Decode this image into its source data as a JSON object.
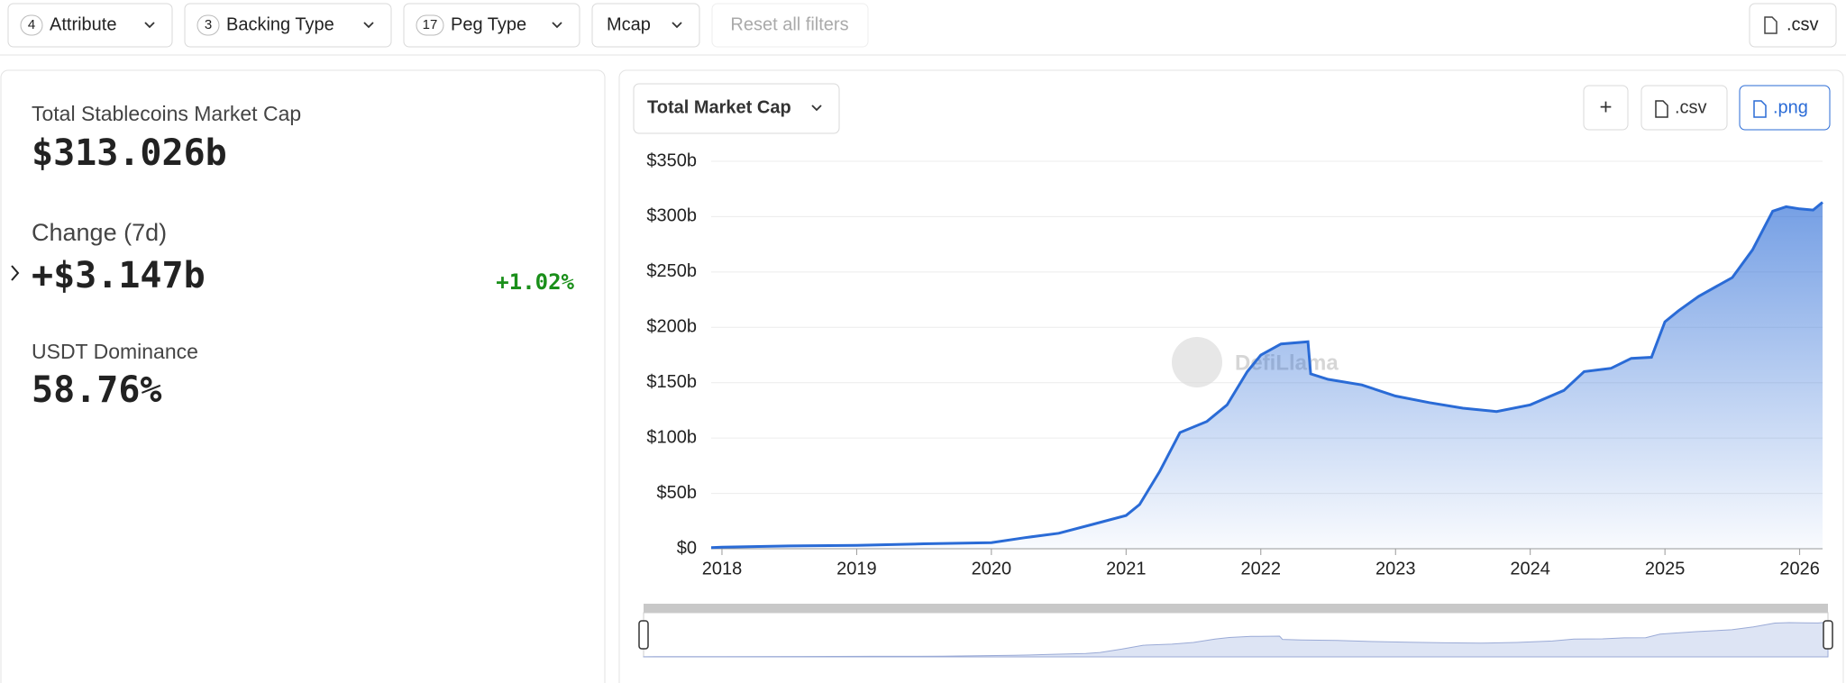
{
  "filters": [
    {
      "count": "4",
      "label": "Attribute"
    },
    {
      "count": "3",
      "label": "Backing Type"
    },
    {
      "count": "17",
      "label": "Peg Type"
    },
    {
      "label": "Mcap"
    }
  ],
  "reset": "Reset all filters",
  "csv": ".csv",
  "stats": [
    {
      "label": "Total Stablecoins Market Cap",
      "value": "$313.026b"
    },
    {
      "label": "Change (7d)",
      "value": "+$3.147b",
      "change": "+1.02%"
    },
    {
      "label": "USDT Dominance",
      "value": "58.76%"
    }
  ],
  "chart_select": "Total Market Cap",
  "chart_buttons": [
    "+",
    ".csv",
    ".png"
  ],
  "watermark": "DefiLlama",
  "chart_data": {
    "type": "area",
    "color": "#2a6bd6",
    "x": [
      2017.92,
      2018,
      2018.5,
      2019,
      2019.5,
      2020,
      2020.25,
      2020.5,
      2020.75,
      2021,
      2021.1,
      2021.25,
      2021.4,
      2021.6,
      2021.75,
      2021.9,
      2022,
      2022.15,
      2022.35,
      2022.37,
      2022.5,
      2022.75,
      2023,
      2023.25,
      2023.5,
      2023.75,
      2024,
      2024.25,
      2024.4,
      2024.6,
      2024.75,
      2024.9,
      2025,
      2025.1,
      2025.25,
      2025.5,
      2025.65,
      2025.8,
      2025.9,
      2026,
      2026.1,
      2026.17
    ],
    "values": [
      1,
      1.5,
      2.5,
      3,
      4.5,
      5.5,
      10,
      14,
      22,
      30,
      40,
      70,
      105,
      115,
      130,
      160,
      175,
      185,
      187,
      158,
      153,
      148,
      138,
      132,
      127,
      124,
      130,
      143,
      160,
      163,
      172,
      173,
      205,
      215,
      228,
      245,
      270,
      305,
      309,
      307,
      306,
      313
    ],
    "xlim": [
      2017.92,
      2026.17
    ],
    "xticks": [
      2018,
      2019,
      2020,
      2021,
      2022,
      2023,
      2024,
      2025,
      2026
    ],
    "ylim": [
      0,
      350
    ],
    "yticks": [
      {
        "value": 0,
        "label": "$0"
      },
      {
        "value": 50,
        "label": "$50b"
      },
      {
        "value": 100,
        "label": "$100b"
      },
      {
        "value": 150,
        "label": "$150b"
      },
      {
        "value": 200,
        "label": "$200b"
      },
      {
        "value": 250,
        "label": "$250b"
      },
      {
        "value": 300,
        "label": "$300b"
      },
      {
        "value": 350,
        "label": "$350b"
      }
    ],
    "grid": true
  }
}
